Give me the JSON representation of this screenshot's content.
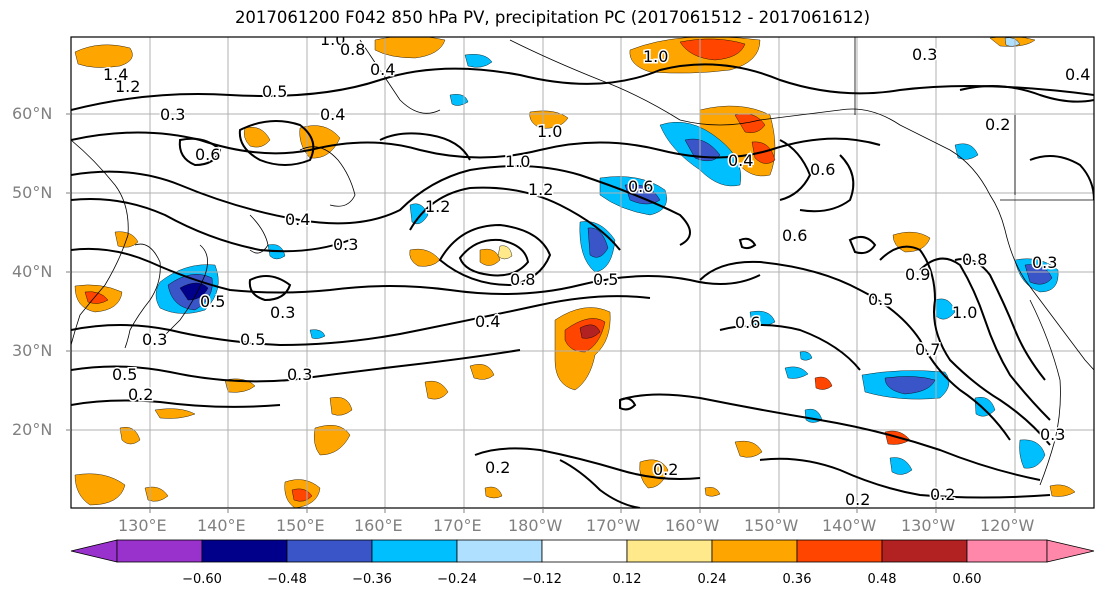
{
  "title": "2017061200 F042 850 hPa PV, precipitation PC (2017061512 - 2017061612)",
  "lat_labels": [
    "60°N",
    "50°N",
    "40°N",
    "30°N",
    "20°N"
  ],
  "lon_labels": [
    "130°E",
    "140°E",
    "150°E",
    "160°E",
    "170°E",
    "180°W",
    "170°W",
    "160°W",
    "150°W",
    "140°W",
    "130°W",
    "120°W"
  ],
  "colorbar": {
    "tick_labels": [
      "−0.60",
      "−0.48",
      "−0.36",
      "−0.24",
      "−0.12",
      "0.12",
      "0.24",
      "0.36",
      "0.48",
      "0.60"
    ],
    "colors": [
      "#9932CC",
      "#00008B",
      "#3A55C8",
      "#00BFFF",
      "#B0E0FF",
      "#FFFFFF",
      "#FFE98A",
      "#FFA500",
      "#FF4500",
      "#B22222",
      "#FF88AA"
    ]
  },
  "contour_labels": [
    "1.4",
    "1.2",
    "1.0",
    "0.8",
    "0.5",
    "0.3",
    "0.4",
    "0.6",
    "0.4",
    "1.0",
    "1.0",
    "1.2",
    "1.2",
    "0.6",
    "0.4",
    "0.6",
    "0.3",
    "0.5",
    "0.3",
    "0.5",
    "0.3",
    "0.4",
    "0.5",
    "0.2",
    "0.3",
    "0.2",
    "0.5",
    "0.6",
    "0.6",
    "0.5",
    "1.0",
    "0.7",
    "0.9",
    "0.8",
    "0.2",
    "0.3",
    "0.2",
    "0.2",
    "0.2",
    "0.4",
    "1.0",
    "0.8",
    "0.3",
    "0.4",
    "0.3"
  ],
  "colors": {
    "contour": "#000000",
    "grid": "#b0b0b0",
    "coast": "#000000",
    "axis_label": "#808080"
  }
}
